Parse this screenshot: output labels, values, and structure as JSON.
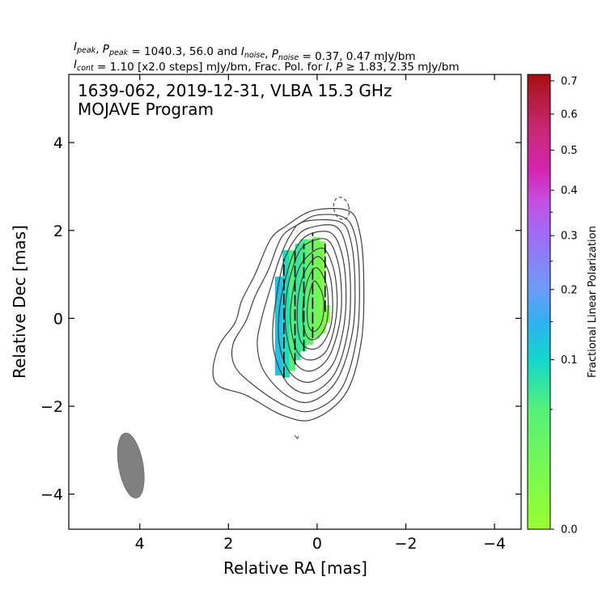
{
  "header": {
    "line1": [
      {
        "t": "I",
        "s": "it"
      },
      {
        "t": "peak",
        "s": "sub"
      },
      {
        "t": ", "
      },
      {
        "t": "P",
        "s": "it"
      },
      {
        "t": "peak",
        "s": "sub"
      },
      {
        "t": " = 1040.3, 56.0 and "
      },
      {
        "t": "I",
        "s": "it"
      },
      {
        "t": "noise",
        "s": "sub"
      },
      {
        "t": ", "
      },
      {
        "t": "P",
        "s": "it"
      },
      {
        "t": "noise",
        "s": "sub"
      },
      {
        "t": " = 0.37, 0.47 mJy/bm"
      }
    ],
    "line2": [
      {
        "t": "I",
        "s": "it"
      },
      {
        "t": "cont",
        "s": "sub"
      },
      {
        "t": " = 1.10 [x2.0 steps] mJy/bm, Frac. Pol. for "
      },
      {
        "t": "I",
        "s": "it"
      },
      {
        "t": ", "
      },
      {
        "t": "P",
        "s": "it"
      },
      {
        "t": " ≥ 1.83, 2.35 mJy/bm"
      }
    ]
  },
  "chart_data": {
    "type": "contour",
    "title_lines": [
      "1639-062, 2019-12-31, VLBA 15.3 GHz",
      "MOJAVE Program"
    ],
    "xlabel": "Relative RA [mas]",
    "ylabel": "Relative Dec [mas]",
    "xlim": [
      5.6,
      -4.6
    ],
    "ylim": [
      -4.8,
      5.55
    ],
    "xticks": [
      4,
      2,
      0,
      -2,
      -4
    ],
    "xtick_labels": [
      "4",
      "2",
      "0",
      "−2",
      "−4"
    ],
    "yticks": [
      4,
      2,
      0,
      -2,
      -4
    ],
    "ytick_labels": [
      "4",
      "2",
      "0",
      "−2",
      "−4"
    ],
    "contours": [
      {
        "level": 1,
        "points": [
          [
            -0.7,
            2.45
          ],
          [
            -0.95,
            2.0
          ],
          [
            -1.05,
            1.0
          ],
          [
            -1.0,
            -0.5
          ],
          [
            -0.65,
            -1.7
          ],
          [
            0.1,
            -2.3
          ],
          [
            0.8,
            -2.2
          ],
          [
            1.6,
            -1.75
          ],
          [
            2.2,
            -1.55
          ],
          [
            2.35,
            -1.2
          ],
          [
            2.2,
            -0.6
          ],
          [
            1.85,
            -0.1
          ],
          [
            1.7,
            0.4
          ],
          [
            1.4,
            1.0
          ],
          [
            1.05,
            1.8
          ],
          [
            0.7,
            2.1
          ],
          [
            0.1,
            2.45
          ]
        ]
      },
      {
        "level": 2,
        "points": [
          [
            -0.6,
            2.3
          ],
          [
            -0.85,
            1.9
          ],
          [
            -0.95,
            1.0
          ],
          [
            -0.9,
            -0.4
          ],
          [
            -0.55,
            -1.6
          ],
          [
            0.1,
            -2.1
          ],
          [
            0.7,
            -2.0
          ],
          [
            1.4,
            -1.55
          ],
          [
            1.85,
            -1.1
          ],
          [
            1.9,
            -0.6
          ],
          [
            1.6,
            -0.05
          ],
          [
            1.4,
            0.5
          ],
          [
            1.1,
            1.1
          ],
          [
            0.8,
            1.85
          ],
          [
            0.4,
            2.15
          ],
          [
            0.0,
            2.35
          ]
        ]
      },
      {
        "level": 3,
        "points": [
          [
            -0.5,
            2.2
          ],
          [
            -0.75,
            1.8
          ],
          [
            -0.85,
            0.9
          ],
          [
            -0.8,
            -0.3
          ],
          [
            -0.45,
            -1.4
          ],
          [
            0.15,
            -1.9
          ],
          [
            0.7,
            -1.75
          ],
          [
            1.2,
            -1.2
          ],
          [
            1.35,
            -0.6
          ],
          [
            1.25,
            0.0
          ],
          [
            1.05,
            0.7
          ],
          [
            0.85,
            1.35
          ],
          [
            0.6,
            1.9
          ],
          [
            0.3,
            2.2
          ]
        ]
      },
      {
        "level": 4,
        "points": [
          [
            -0.4,
            2.1
          ],
          [
            -0.65,
            1.65
          ],
          [
            -0.75,
            0.8
          ],
          [
            -0.7,
            -0.25
          ],
          [
            -0.4,
            -1.25
          ],
          [
            0.15,
            -1.7
          ],
          [
            0.65,
            -1.5
          ],
          [
            0.95,
            -0.85
          ],
          [
            1.0,
            -0.2
          ],
          [
            0.9,
            0.6
          ],
          [
            0.75,
            1.3
          ],
          [
            0.5,
            1.8
          ],
          [
            0.2,
            2.05
          ]
        ]
      },
      {
        "level": 5,
        "points": [
          [
            -0.3,
            1.95
          ],
          [
            -0.55,
            1.5
          ],
          [
            -0.65,
            0.7
          ],
          [
            -0.6,
            -0.2
          ],
          [
            -0.35,
            -1.05
          ],
          [
            0.15,
            -1.45
          ],
          [
            0.6,
            -1.25
          ],
          [
            0.85,
            -0.6
          ],
          [
            0.85,
            0.2
          ],
          [
            0.7,
            0.95
          ],
          [
            0.5,
            1.55
          ],
          [
            0.2,
            1.9
          ]
        ]
      },
      {
        "level": 6,
        "points": [
          [
            -0.2,
            1.8
          ],
          [
            -0.45,
            1.35
          ],
          [
            -0.55,
            0.6
          ],
          [
            -0.5,
            -0.15
          ],
          [
            -0.25,
            -0.9
          ],
          [
            0.15,
            -1.2
          ],
          [
            0.5,
            -1.0
          ],
          [
            0.7,
            -0.3
          ],
          [
            0.7,
            0.45
          ],
          [
            0.55,
            1.15
          ],
          [
            0.3,
            1.65
          ]
        ]
      },
      {
        "level": 7,
        "points": [
          [
            -0.1,
            1.6
          ],
          [
            -0.35,
            1.2
          ],
          [
            -0.45,
            0.5
          ],
          [
            -0.4,
            -0.15
          ],
          [
            -0.2,
            -0.75
          ],
          [
            0.15,
            -0.95
          ],
          [
            0.45,
            -0.75
          ],
          [
            0.6,
            -0.1
          ],
          [
            0.55,
            0.6
          ],
          [
            0.35,
            1.25
          ]
        ]
      },
      {
        "level": 8,
        "points": [
          [
            -0.05,
            1.4
          ],
          [
            -0.28,
            1.0
          ],
          [
            -0.35,
            0.35
          ],
          [
            -0.3,
            -0.2
          ],
          [
            -0.1,
            -0.6
          ],
          [
            0.15,
            -0.7
          ],
          [
            0.38,
            -0.5
          ],
          [
            0.45,
            0.1
          ],
          [
            0.38,
            0.75
          ],
          [
            0.2,
            1.2
          ]
        ]
      },
      {
        "level": 9,
        "points": [
          [
            0.0,
            1.15
          ],
          [
            -0.2,
            0.8
          ],
          [
            -0.25,
            0.3
          ],
          [
            -0.2,
            -0.15
          ],
          [
            0.0,
            -0.45
          ],
          [
            0.2,
            -0.45
          ],
          [
            0.32,
            -0.1
          ],
          [
            0.3,
            0.45
          ],
          [
            0.18,
            0.95
          ]
        ]
      },
      {
        "level": 10,
        "points": [
          [
            0.05,
            0.85
          ],
          [
            -0.12,
            0.55
          ],
          [
            -0.15,
            0.2
          ],
          [
            -0.08,
            -0.15
          ],
          [
            0.08,
            -0.3
          ],
          [
            0.2,
            -0.15
          ],
          [
            0.22,
            0.25
          ],
          [
            0.15,
            0.65
          ]
        ]
      }
    ],
    "negative_contour": {
      "center": [
        -0.55,
        2.5
      ],
      "rx": 0.17,
      "ry": 0.26
    },
    "polarization_columns": [
      {
        "x0": 0.95,
        "x1": 0.78,
        "y0": -1.3,
        "y1": 0.95,
        "frac": 0.13
      },
      {
        "x0": 0.78,
        "x1": 0.63,
        "y0": -1.35,
        "y1": 1.55,
        "frac": 0.09
      },
      {
        "x0": 0.63,
        "x1": 0.5,
        "y0": -1.2,
        "y1": 1.55,
        "frac": 0.05
      },
      {
        "x0": 0.5,
        "x1": 0.38,
        "y0": -0.95,
        "y1": 1.7,
        "frac": 0.07
      },
      {
        "x0": 0.38,
        "x1": 0.25,
        "y0": -0.75,
        "y1": 1.8,
        "frac": 0.06
      },
      {
        "x0": 0.25,
        "x1": 0.1,
        "y0": -0.6,
        "y1": 1.8,
        "frac": 0.04
      },
      {
        "x0": 0.1,
        "x1": -0.05,
        "y0": -0.45,
        "y1": 1.85,
        "frac": 0.03
      },
      {
        "x0": -0.05,
        "x1": -0.18,
        "y0": -0.35,
        "y1": 1.75,
        "frac": 0.02
      },
      {
        "x0": -0.18,
        "x1": -0.28,
        "y0": -0.1,
        "y1": 0.3,
        "frac": 0.01
      }
    ],
    "evpa_ticks": [
      {
        "x": 0.75,
        "y0": -1.35,
        "y1": 1.35
      },
      {
        "x": 0.5,
        "y0": -1.05,
        "y1": 1.6
      },
      {
        "x": 0.3,
        "y0": -0.75,
        "y1": 1.7
      },
      {
        "x": 0.1,
        "y0": -0.45,
        "y1": 1.95
      },
      {
        "x": -0.18,
        "y0": 0.15,
        "y1": 1.7
      }
    ],
    "beam": {
      "x": 4.2,
      "y": -3.35,
      "major": 1.5,
      "minor": 0.55,
      "pa_deg": -10,
      "color": "#808080"
    },
    "stray_mark": {
      "x": 0.45,
      "y": -2.7
    },
    "colorbar": {
      "label": "Fractional Linear Polarization",
      "tick_values": [
        0.0,
        0.1,
        0.2,
        0.3,
        0.4,
        0.5,
        0.6,
        0.7
      ],
      "tick_labels": [
        "0.0",
        "0.1",
        "0.2",
        "0.3",
        "0.4",
        "0.5",
        "0.6",
        "0.7"
      ],
      "minor_ticks": [
        0.05,
        0.15,
        0.25,
        0.35
      ],
      "scale": "sqrt",
      "max": 0.72,
      "colormap": [
        [
          0.0,
          "#9aff30"
        ],
        [
          0.05,
          "#55f07a"
        ],
        [
          0.1,
          "#14d6cc"
        ],
        [
          0.15,
          "#30b0f0"
        ],
        [
          0.2,
          "#6c9cf8"
        ],
        [
          0.3,
          "#a06cf4"
        ],
        [
          0.38,
          "#c64ce0"
        ],
        [
          0.45,
          "#d424b0"
        ],
        [
          0.55,
          "#c82878"
        ],
        [
          0.65,
          "#b41c3c"
        ],
        [
          0.72,
          "#a80c0c"
        ]
      ]
    }
  }
}
